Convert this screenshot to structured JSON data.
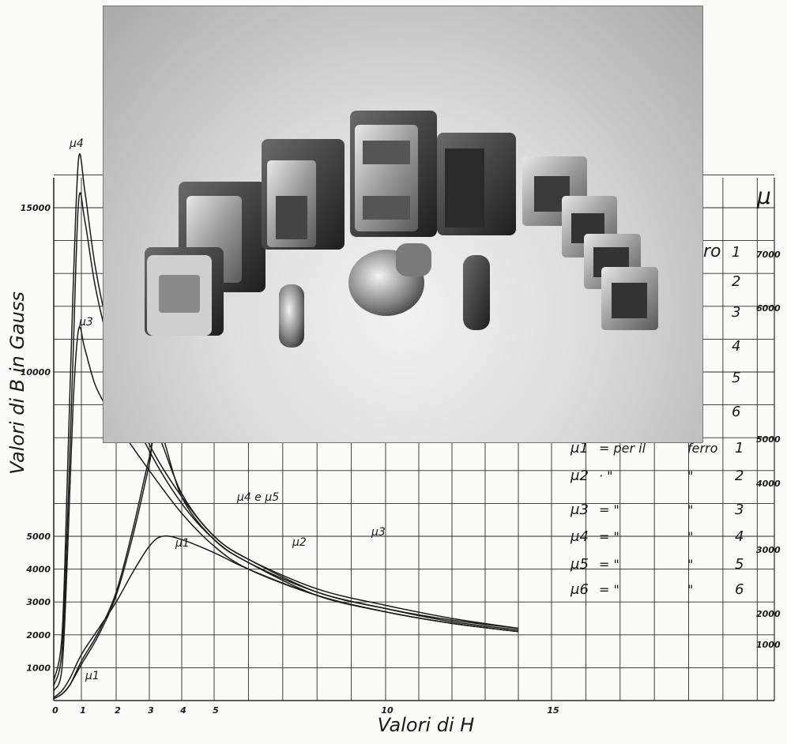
{
  "chart_data": {
    "type": "line",
    "xlabel": "Valori di H",
    "ylabel": "Valori di B in Gauss",
    "xlim": [
      0,
      21.5
    ],
    "ylim": [
      0,
      16500
    ],
    "x_ticks": [
      "0",
      "1",
      "2",
      "3",
      "4",
      "5",
      "10",
      "15"
    ],
    "y_ticks": [
      "1000",
      "2000",
      "3000",
      "4000",
      "5000",
      "10000",
      "15000"
    ],
    "mu_ticks": [
      "1000",
      "2000",
      "3000",
      "4000",
      "5000",
      "6000",
      "7000"
    ],
    "mu_axis_label": "μ",
    "grid": true,
    "series": [
      {
        "name": "μ1",
        "color": "#1a1a1a",
        "x": [
          0.3,
          0.6,
          1,
          1.5,
          2,
          2.5,
          3,
          3.4,
          4,
          5,
          6,
          8,
          10,
          12,
          14
        ],
        "y": [
          300,
          700,
          1400,
          2200,
          3000,
          3900,
          4700,
          5000,
          4900,
          4500,
          4000,
          3200,
          2700,
          2350,
          2100
        ]
      },
      {
        "name": "μ2",
        "color": "#1a1a1a",
        "x": [
          0.3,
          0.6,
          1,
          1.5,
          2,
          2.5,
          3,
          3.2,
          4,
          5,
          6,
          8,
          10,
          12,
          14
        ],
        "y": [
          200,
          500,
          1100,
          2000,
          3200,
          5000,
          7200,
          8200,
          6300,
          5000,
          4300,
          3300,
          2800,
          2450,
          2200
        ]
      },
      {
        "name": "μ3",
        "color": "#1a1a1a",
        "x": [
          0.3,
          0.6,
          1,
          1.5,
          2,
          2.5,
          3,
          3.3,
          4,
          5,
          6,
          8,
          10,
          12,
          14
        ],
        "y": [
          200,
          500,
          1200,
          2100,
          3300,
          5200,
          7400,
          8300,
          6200,
          4900,
          4200,
          3200,
          2700,
          2350,
          2100
        ]
      },
      {
        "name": "μ4",
        "color": "#1a1a1a",
        "x": [
          0.3,
          0.5,
          0.7,
          0.9,
          1.1,
          1.4,
          1.8,
          2.3,
          3,
          4,
          5,
          6,
          8,
          10,
          12,
          14
        ],
        "y": [
          2000,
          7000,
          12500,
          16500,
          15500,
          13200,
          11200,
          9600,
          7800,
          6200,
          5000,
          4300,
          3400,
          2900,
          2500,
          2200
        ]
      },
      {
        "name": "μ5",
        "color": "#1a1a1a",
        "x": [
          0.3,
          0.5,
          0.7,
          0.9,
          1.1,
          1.4,
          1.8,
          2.3,
          3,
          4,
          5,
          6,
          8,
          10,
          12,
          14
        ],
        "y": [
          1500,
          5500,
          10500,
          15200,
          14600,
          12600,
          10800,
          9200,
          7600,
          6000,
          4900,
          4200,
          3300,
          2800,
          2400,
          2150
        ]
      },
      {
        "name": "μ6",
        "color": "#1a1a1a",
        "x": [
          0.3,
          0.5,
          0.7,
          0.9,
          1.1,
          1.4,
          1.8,
          2.3,
          3,
          4,
          5,
          6,
          8,
          10,
          12,
          14
        ],
        "y": [
          1000,
          4500,
          9000,
          11300,
          10700,
          9600,
          8800,
          8000,
          7000,
          5700,
          4700,
          4000,
          3200,
          2700,
          2350,
          2100
        ]
      }
    ],
    "curve_labels": [
      "μ1",
      "μ2",
      "μ3",
      "μ4 e μ5",
      "μ4",
      "μ3",
      "μ1"
    ],
    "legend_left": [
      {
        "mu": "μ1",
        "mid": "= per il",
        "word": "ferro",
        "num": "1"
      },
      {
        "mu": "μ2",
        "mid": "·  \"",
        "word": "\"",
        "num": "2"
      },
      {
        "mu": "μ3",
        "mid": "=  \"",
        "word": "\"",
        "num": "3"
      },
      {
        "mu": "μ4",
        "mid": "=  \"",
        "word": "\"",
        "num": "4"
      },
      {
        "mu": "μ5",
        "mid": "=  \"",
        "word": "\"",
        "num": "5"
      },
      {
        "mu": "μ6",
        "mid": "=  \"",
        "word": "\"",
        "num": "6"
      }
    ],
    "legend_right_top": [
      {
        "text": "ro",
        "num": "1"
      },
      {
        "text": "",
        "num": "2"
      },
      {
        "text": "",
        "num": "3"
      },
      {
        "text": "",
        "num": "4"
      },
      {
        "text": "",
        "num": "5"
      },
      {
        "text": "",
        "num": "6"
      }
    ]
  },
  "photo": {
    "subject": "transformers-and-vacuum-tubes-photo"
  }
}
